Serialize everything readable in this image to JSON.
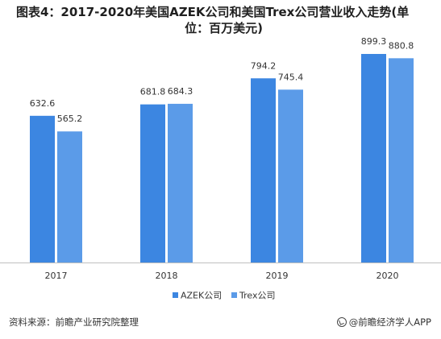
{
  "title_line1": "图表4：2017-2020年美国AZEK公司和美国Trex公司营业收入走势(单",
  "title_line2": "位：百万美元)",
  "source": "资料来源：前瞻产业研究院整理",
  "brand": "@前瞻经济学人APP",
  "colors": {
    "azek": "#3c86e1",
    "trex": "#5b9be8",
    "axis": "#bfbfbf"
  },
  "chart_data": {
    "type": "bar",
    "categories": [
      "2017",
      "2018",
      "2019",
      "2020"
    ],
    "series": [
      {
        "name": "AZEK公司",
        "values": [
          632.6,
          681.8,
          794.2,
          899.3
        ]
      },
      {
        "name": "Trex公司",
        "values": [
          565.2,
          684.3,
          745.4,
          880.8
        ]
      }
    ],
    "title": "图表4：2017-2020年美国AZEK公司和美国Trex公司营业收入走势(单位：百万美元)",
    "xlabel": "",
    "ylabel": "",
    "ylim": [
      0,
      1000
    ],
    "grid": false,
    "legend": "bottom"
  }
}
